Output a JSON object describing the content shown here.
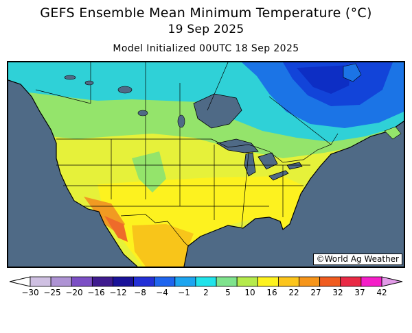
{
  "title": "GEFS Ensemble Mean Minimum Temperature (°C)",
  "valid_date": "19 Sep 2025",
  "init_line": "Model Initialized 00UTC 18 Sep 2025",
  "credit": "©World Ag Weather",
  "colors": {
    "ocean": "#4f6a86",
    "lakes": "#4f6a86",
    "canada_west": "#2fd1d7",
    "canada_east": "#1b74e6",
    "quebec_core": "#1244d9",
    "labrador": "#0d2ec4",
    "plains_green": "#94e46b",
    "west_yellow": "#e6f13a",
    "south_yellow": "#fdf21f",
    "gulf_orange": "#f8c51a",
    "desert_orange": "#f19a22",
    "hot_red": "#ee6b2a"
  },
  "colorbar": {
    "ticks": [
      "-30",
      "-25",
      "-20",
      "-16",
      "-12",
      "-8",
      "-4",
      "-1",
      "2",
      "5",
      "10",
      "16",
      "22",
      "27",
      "32",
      "37",
      "42"
    ],
    "swatches": [
      "#cfc0e2",
      "#ae93d4",
      "#7c4fc5",
      "#3f1b8f",
      "#1a1299",
      "#2330d6",
      "#1f65ee",
      "#1da5f0",
      "#21e3ea",
      "#7fe38d",
      "#b5eb4c",
      "#fdf21f",
      "#fcc51c",
      "#f6951a",
      "#f05c1f",
      "#e92a45",
      "#f51ec8"
    ],
    "under_color": "#ffffff",
    "over_color": "#e29be8"
  }
}
